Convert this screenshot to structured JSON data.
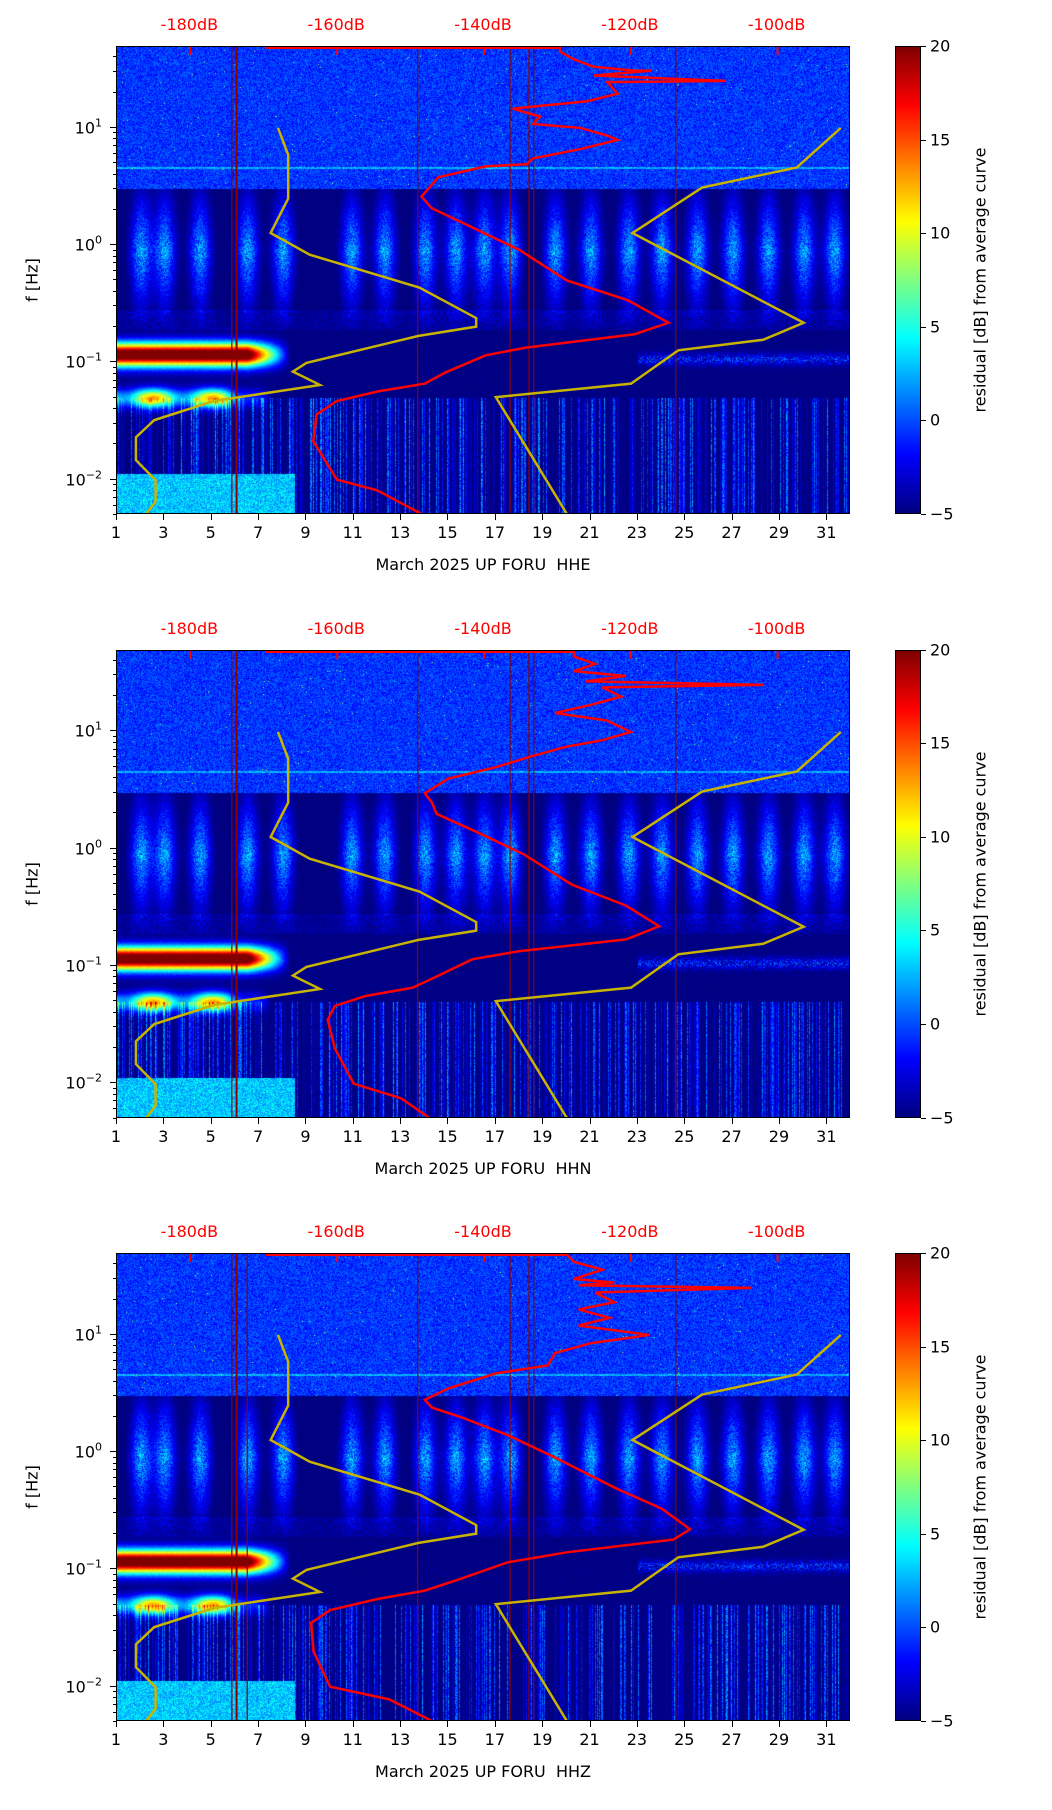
{
  "shared": {
    "ylabel": "f [Hz]",
    "xlim": [
      1,
      32
    ],
    "ylim": [
      0.005,
      49
    ],
    "yscale": "log",
    "xticks": [
      "1",
      "3",
      "5",
      "7",
      "9",
      "11",
      "13",
      "15",
      "17",
      "19",
      "21",
      "23",
      "25",
      "27",
      "29",
      "31"
    ],
    "yticks": [
      {
        "value": 10,
        "base": "10",
        "exp": "1"
      },
      {
        "value": 1,
        "base": "10",
        "exp": "0"
      },
      {
        "value": 0.1,
        "base": "10",
        "exp": "−1"
      },
      {
        "value": 0.01,
        "base": "10",
        "exp": "−2"
      }
    ],
    "top_axis": [
      {
        "label": "-180dB",
        "day": 4.1
      },
      {
        "label": "-160dB",
        "day": 10.3
      },
      {
        "label": "-140dB",
        "day": 16.5
      },
      {
        "label": "-120dB",
        "day": 22.7
      },
      {
        "label": "-100dB",
        "day": 28.9
      }
    ],
    "colorbar": {
      "label": "residual [dB] from average curve",
      "range": [
        -5,
        20
      ],
      "colormap": "jet",
      "ticks": [
        {
          "value": 20,
          "label": "20"
        },
        {
          "value": 15,
          "label": "15"
        },
        {
          "value": 10,
          "label": "10"
        },
        {
          "value": 5,
          "label": "5"
        },
        {
          "value": 0,
          "label": "0"
        },
        {
          "value": -5,
          "label": "−5"
        }
      ]
    },
    "colors": {
      "average_curve": "#ff0000",
      "noise_models": "#c8b400",
      "event_lines": "#8b0000"
    },
    "nlnm": [
      [
        7.8,
        10
      ],
      [
        8.23,
        5.9
      ],
      [
        8.23,
        2.5
      ],
      [
        7.49,
        1.27
      ],
      [
        9.14,
        0.83
      ],
      [
        13.77,
        0.435
      ],
      [
        16.17,
        0.239
      ],
      [
        16.17,
        0.202
      ],
      [
        13.71,
        0.168
      ],
      [
        9.0,
        0.099
      ],
      [
        8.43,
        0.0836
      ],
      [
        9.57,
        0.0643
      ],
      [
        5.09,
        0.0469
      ],
      [
        2.57,
        0.0322
      ],
      [
        1.8,
        0.023
      ],
      [
        1.8,
        0.0147
      ],
      [
        2.63,
        0.0099
      ],
      [
        2.63,
        0.0065
      ],
      [
        2.23,
        0.0051
      ]
    ],
    "nhnm": [
      [
        31.57,
        10
      ],
      [
        29.71,
        4.6
      ],
      [
        25.71,
        3.1
      ],
      [
        22.77,
        1.27
      ],
      [
        30.0,
        0.218
      ],
      [
        28.29,
        0.156
      ],
      [
        24.71,
        0.127
      ],
      [
        22.71,
        0.066
      ],
      [
        17.0,
        0.0506
      ],
      [
        20.0,
        0.0051
      ]
    ]
  },
  "chart_data": [
    {
      "type": "heatmap",
      "title": "",
      "xlabel": "March 2025 UP FORU  HHE",
      "channel": "HHE",
      "vertical_lines": [
        5.85,
        6.05,
        13.7,
        17.6,
        18.4,
        18.6,
        24.6
      ],
      "average_psd": [
        [
          7.29,
          48.3
        ],
        [
          19.71,
          48.3
        ],
        [
          19.71,
          44.8
        ],
        [
          20.29,
          38.5
        ],
        [
          21.14,
          33.2
        ],
        [
          22.86,
          30.8
        ],
        [
          23.57,
          30.8
        ],
        [
          21.14,
          28
        ],
        [
          26.71,
          25.2
        ],
        [
          21.71,
          24.6
        ],
        [
          22.14,
          19.6
        ],
        [
          20.86,
          16.9
        ],
        [
          17.71,
          14.6
        ],
        [
          18.86,
          12.5
        ],
        [
          18.57,
          10.8
        ],
        [
          20.57,
          10
        ],
        [
          21.71,
          8.6
        ],
        [
          22.14,
          7.9
        ],
        [
          20.57,
          6.6
        ],
        [
          18.57,
          5.5
        ],
        [
          18.29,
          4.9
        ],
        [
          16.57,
          4.7
        ],
        [
          14.57,
          3.8
        ],
        [
          14.0,
          2.8
        ],
        [
          13.86,
          2.6
        ],
        [
          14.29,
          2.07
        ],
        [
          16.0,
          1.42
        ],
        [
          18.0,
          0.91
        ],
        [
          20.0,
          0.5
        ],
        [
          22.57,
          0.34
        ],
        [
          24.29,
          0.218
        ],
        [
          22.86,
          0.174
        ],
        [
          18.29,
          0.134
        ],
        [
          16.57,
          0.115
        ],
        [
          14.86,
          0.082
        ],
        [
          14.0,
          0.066
        ],
        [
          12.0,
          0.0565
        ],
        [
          10.29,
          0.0469
        ],
        [
          9.43,
          0.036
        ],
        [
          9.29,
          0.0213
        ],
        [
          10.29,
          0.01
        ],
        [
          12.0,
          0.0081
        ],
        [
          13.86,
          0.0051
        ]
      ]
    },
    {
      "type": "heatmap",
      "title": "",
      "xlabel": "March 2025 UP FORU  HHN",
      "channel": "HHN",
      "vertical_lines": [
        5.85,
        6.05,
        13.7,
        17.6,
        18.4,
        18.6,
        24.6
      ],
      "average_psd": [
        [
          7.29,
          48.3
        ],
        [
          20.3,
          48.3
        ],
        [
          20.3,
          44
        ],
        [
          21.2,
          38
        ],
        [
          20.3,
          33
        ],
        [
          22.5,
          30
        ],
        [
          20.8,
          27
        ],
        [
          28.3,
          25.2
        ],
        [
          21.5,
          24
        ],
        [
          22.3,
          20
        ],
        [
          21.0,
          17
        ],
        [
          19.5,
          14.5
        ],
        [
          21.7,
          12.5
        ],
        [
          22.7,
          10
        ],
        [
          21.5,
          8.5
        ],
        [
          20.0,
          7.5
        ],
        [
          18.5,
          6.2
        ],
        [
          17.0,
          5.0
        ],
        [
          15.0,
          4.0
        ],
        [
          14.0,
          3.0
        ],
        [
          14.3,
          2.5
        ],
        [
          14.5,
          2.0
        ],
        [
          16.2,
          1.4
        ],
        [
          18.2,
          0.9
        ],
        [
          20.2,
          0.5
        ],
        [
          22.5,
          0.33
        ],
        [
          23.9,
          0.22
        ],
        [
          22.5,
          0.17
        ],
        [
          18.0,
          0.135
        ],
        [
          16.0,
          0.115
        ],
        [
          14.5,
          0.082
        ],
        [
          13.5,
          0.066
        ],
        [
          11.5,
          0.056
        ],
        [
          10.2,
          0.046
        ],
        [
          9.9,
          0.035
        ],
        [
          10.2,
          0.02
        ],
        [
          11.0,
          0.01
        ],
        [
          13.0,
          0.0075
        ],
        [
          14.2,
          0.0051
        ]
      ]
    },
    {
      "type": "heatmap",
      "title": "",
      "xlabel": "March 2025 UP FORU  HHZ",
      "channel": "HHZ",
      "vertical_lines": [
        5.85,
        6.05,
        6.5,
        13.7,
        17.6,
        18.4,
        18.6,
        24.6
      ],
      "average_psd": [
        [
          7.29,
          48.3
        ],
        [
          20.0,
          48.3
        ],
        [
          20.3,
          42
        ],
        [
          21.5,
          36
        ],
        [
          20.3,
          30
        ],
        [
          22.0,
          28
        ],
        [
          20.5,
          26.5
        ],
        [
          27.8,
          25.2
        ],
        [
          21.2,
          23
        ],
        [
          22.0,
          19
        ],
        [
          20.5,
          16.5
        ],
        [
          21.8,
          14
        ],
        [
          20.5,
          12
        ],
        [
          23.5,
          10
        ],
        [
          21.0,
          8.5
        ],
        [
          19.5,
          7
        ],
        [
          19.2,
          5.5
        ],
        [
          17.0,
          4.7
        ],
        [
          15.0,
          3.5
        ],
        [
          14.0,
          2.8
        ],
        [
          14.3,
          2.4
        ],
        [
          15.5,
          2.0
        ],
        [
          17.5,
          1.4
        ],
        [
          19.5,
          0.9
        ],
        [
          22.0,
          0.5
        ],
        [
          24.0,
          0.33
        ],
        [
          25.2,
          0.22
        ],
        [
          24.5,
          0.18
        ],
        [
          20.0,
          0.14
        ],
        [
          17.5,
          0.115
        ],
        [
          15.5,
          0.083
        ],
        [
          14.0,
          0.066
        ],
        [
          12.0,
          0.056
        ],
        [
          10.0,
          0.045
        ],
        [
          9.2,
          0.035
        ],
        [
          9.3,
          0.02
        ],
        [
          10.0,
          0.01
        ],
        [
          12.5,
          0.0078
        ],
        [
          14.3,
          0.0051
        ]
      ]
    }
  ]
}
